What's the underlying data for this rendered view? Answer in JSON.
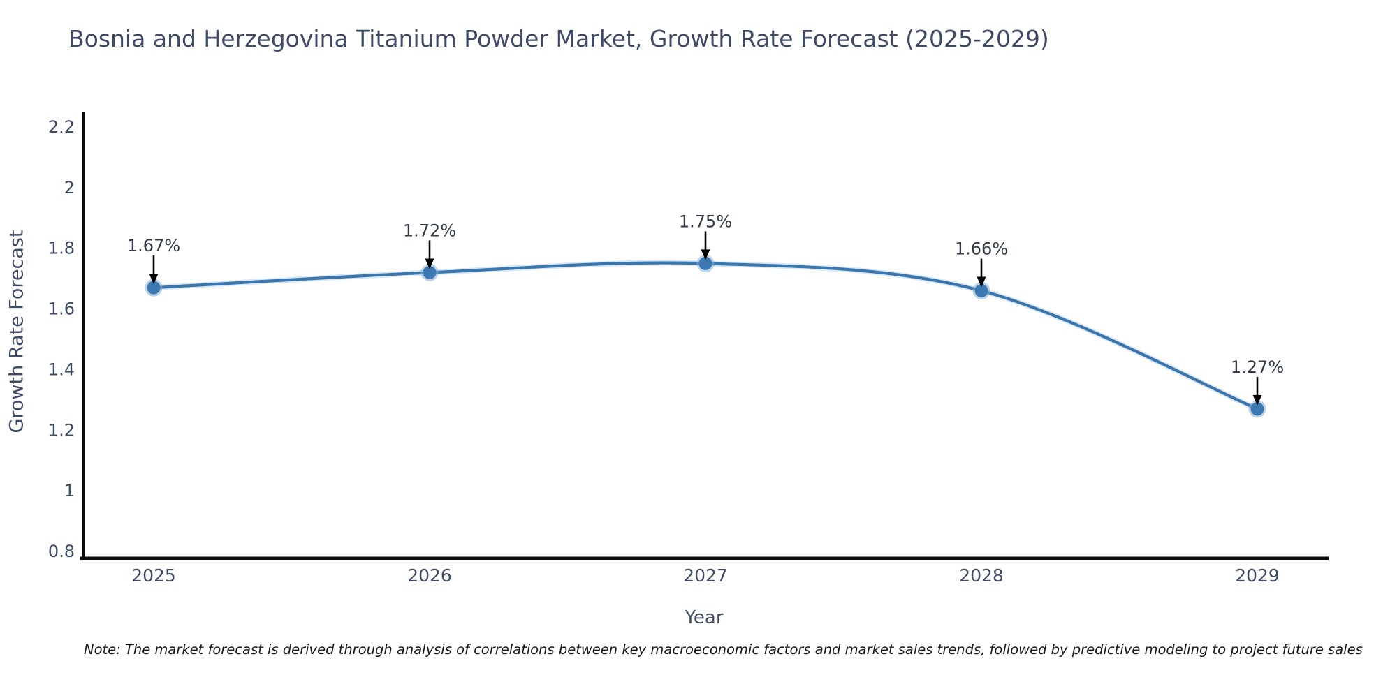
{
  "title": "Bosnia and Herzegovina Titanium Powder Market, Growth Rate Forecast (2025-2029)",
  "note": "Note: The market forecast is derived through analysis of correlations between key macroeconomic factors and market sales trends, followed by predictive modeling to project future sales",
  "chart_data": {
    "type": "line",
    "line_shape": "spline",
    "title": "Bosnia and Herzegovina Titanium Powder Market, Growth Rate Forecast (2025-2029)",
    "xlabel": "Year",
    "ylabel": "Growth Rate Forecast",
    "x": [
      2025,
      2026,
      2027,
      2028,
      2029
    ],
    "series": [
      {
        "name": "Growth Rate Forecast",
        "values": [
          1.67,
          1.72,
          1.75,
          1.66,
          1.27
        ]
      }
    ],
    "point_labels": [
      "1.67%",
      "1.72%",
      "1.75%",
      "1.66%",
      "1.27%"
    ],
    "xtick_labels": [
      "2025",
      "2026",
      "2027",
      "2028",
      "2029"
    ],
    "yticks": [
      2.2,
      2,
      1.8,
      1.6,
      1.4,
      1.2,
      1,
      0.8
    ],
    "ytick_labels": [
      "2.2",
      "2",
      "1.8",
      "1.6",
      "1.4",
      "1.2",
      "1",
      "0.8"
    ],
    "ylim": [
      0.8,
      2.2
    ],
    "grid": false,
    "legend": "none",
    "colors": {
      "line": "#3a76ae",
      "line_glow": "#a5c6e3",
      "marker": "#3c78b2",
      "marker_ring": "#85aed6",
      "axis": "#0b0b0b",
      "tick_text": "#3d4b66",
      "annotation_text": "#333b49",
      "arrow": "#000000"
    }
  }
}
